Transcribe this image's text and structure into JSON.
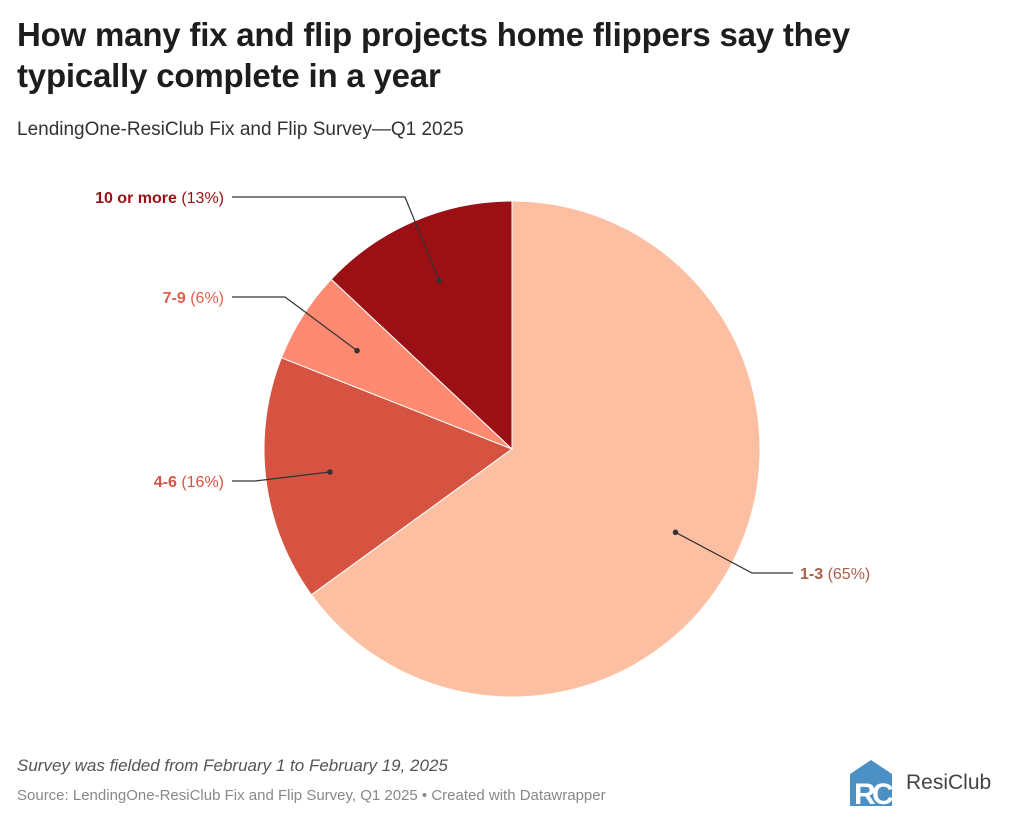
{
  "header": {
    "title": "How many fix and flip projects home flippers say they typically complete in a year",
    "subtitle": "LendingOne-ResiClub Fix and Flip Survey—Q1 2025"
  },
  "footer": {
    "note": "Survey was fielded from February 1 to February 19, 2025",
    "source": "Source: LendingOne-ResiClub Fix and Flip Survey, Q1 2025 • Created with Datawrapper",
    "logo_text": "ResiClub",
    "logo_mark": "RC"
  },
  "chart_data": {
    "type": "pie",
    "title": "How many fix and flip projects home flippers say they typically complete in a year",
    "start": "top, clockwise",
    "slices": [
      {
        "label": "1-3",
        "value": 65,
        "pct_label": "(65%)",
        "color": "#fdbfa2",
        "label_color": "#a8604a"
      },
      {
        "label": "4-6",
        "value": 16,
        "pct_label": "(16%)",
        "color": "#d65341",
        "label_color": "#d65341"
      },
      {
        "label": "7-9",
        "value": 6,
        "pct_label": "(6%)",
        "color": "#fd8a71",
        "label_color": "#e0604b"
      },
      {
        "label": "10 or more",
        "value": 13,
        "pct_label": "(13%)",
        "color": "#9a1014",
        "label_color": "#9a1014"
      }
    ]
  }
}
